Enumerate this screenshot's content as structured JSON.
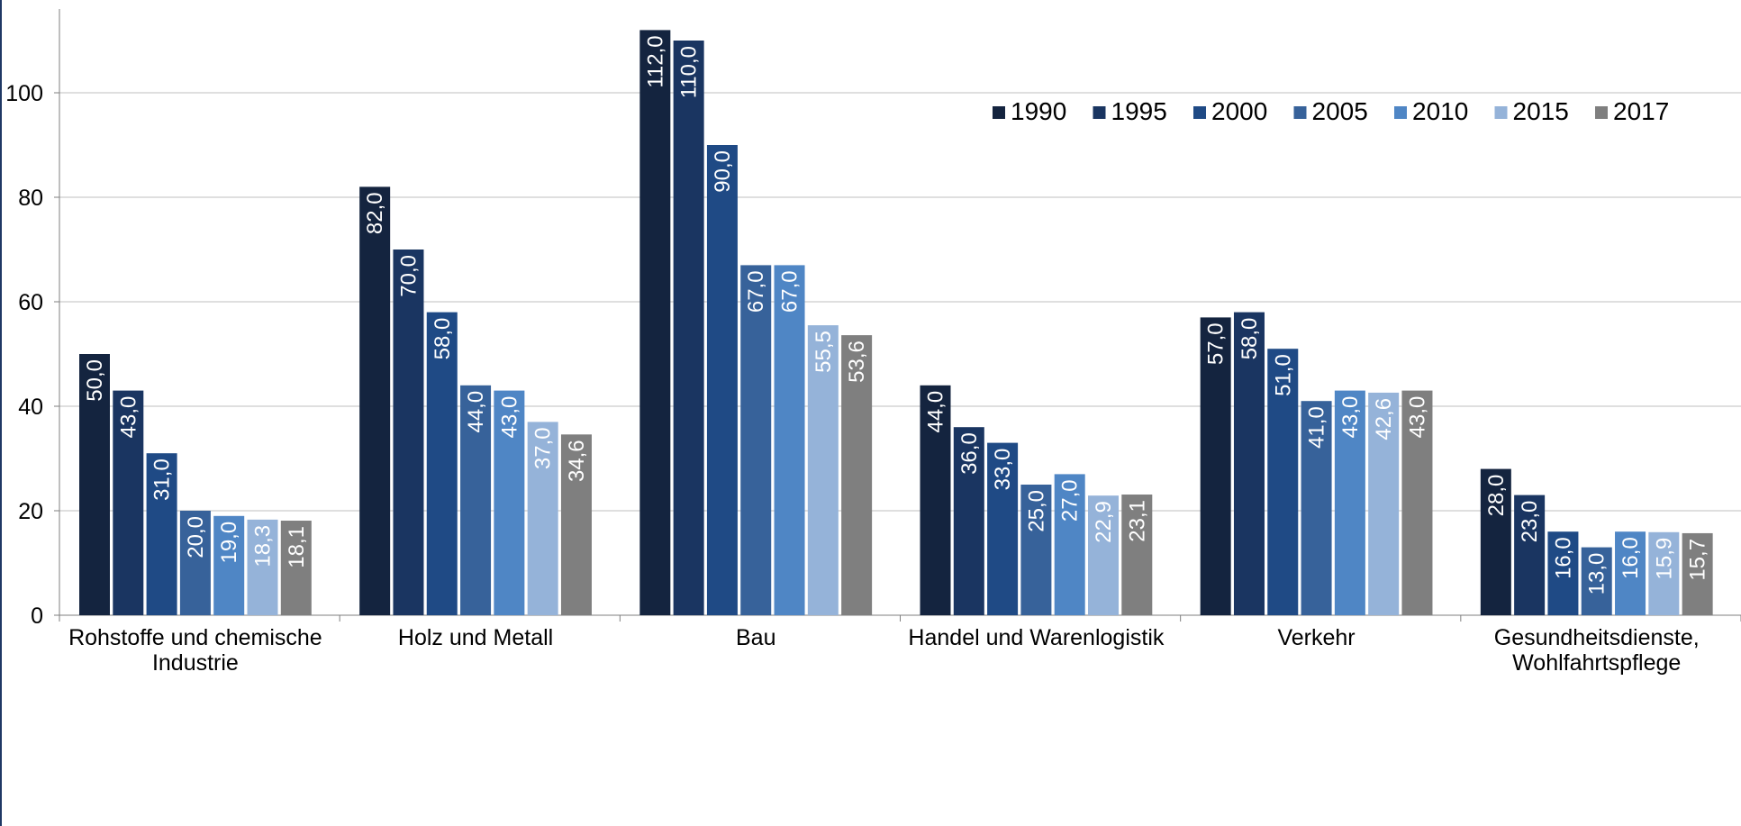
{
  "chart_data": {
    "type": "bar",
    "title": "",
    "xlabel": "",
    "ylabel": "",
    "ylim": [
      0,
      115
    ],
    "yticks": [
      0,
      20,
      40,
      60,
      80,
      100
    ],
    "grid": true,
    "legend_position": "top-right",
    "categories": [
      [
        "Rohstoffe und chemische",
        "Industrie"
      ],
      [
        "Holz und Metall"
      ],
      [
        "Bau"
      ],
      [
        "Handel und Warenlogistik"
      ],
      [
        "Verkehr"
      ],
      [
        "Gesundheitsdienste,",
        "Wohlfahrtspflege"
      ]
    ],
    "series": [
      {
        "name": "1990",
        "color": "#14243f",
        "values": [
          50.0,
          82.0,
          112.0,
          44.0,
          57.0,
          28.0
        ],
        "labels": [
          "50,0",
          "82,0",
          "112,0",
          "44,0",
          "57,0",
          "28,0"
        ]
      },
      {
        "name": "1995",
        "color": "#1a3561",
        "values": [
          43.0,
          70.0,
          110.0,
          36.0,
          58.0,
          23.0
        ],
        "labels": [
          "43,0",
          "70,0",
          "110,0",
          "36,0",
          "58,0",
          "23,0"
        ]
      },
      {
        "name": "2000",
        "color": "#1f4a85",
        "values": [
          31.0,
          58.0,
          90.0,
          33.0,
          51.0,
          16.0
        ],
        "labels": [
          "31,0",
          "58,0",
          "90,0",
          "33,0",
          "51,0",
          "16,0"
        ]
      },
      {
        "name": "2005",
        "color": "#37629a",
        "values": [
          20.0,
          44.0,
          67.0,
          25.0,
          41.0,
          13.0
        ],
        "labels": [
          "20,0",
          "44,0",
          "67,0",
          "25,0",
          "41,0",
          "13,0"
        ]
      },
      {
        "name": "2010",
        "color": "#4f86c5",
        "values": [
          19.0,
          43.0,
          67.0,
          27.0,
          43.0,
          16.0
        ],
        "labels": [
          "19,0",
          "43,0",
          "67,0",
          "27,0",
          "43,0",
          "16,0"
        ]
      },
      {
        "name": "2015",
        "color": "#95b3d9",
        "values": [
          18.3,
          37.0,
          55.5,
          22.9,
          42.6,
          15.9
        ],
        "labels": [
          "18,3",
          "37,0",
          "55,5",
          "22,9",
          "42,6",
          "15,9"
        ]
      },
      {
        "name": "2017",
        "color": "#7f7f7f",
        "values": [
          18.1,
          34.6,
          53.6,
          23.1,
          43.0,
          15.7
        ],
        "labels": [
          "18,1",
          "34,6",
          "53,6",
          "23,1",
          "43,0",
          "15,7"
        ]
      }
    ]
  }
}
